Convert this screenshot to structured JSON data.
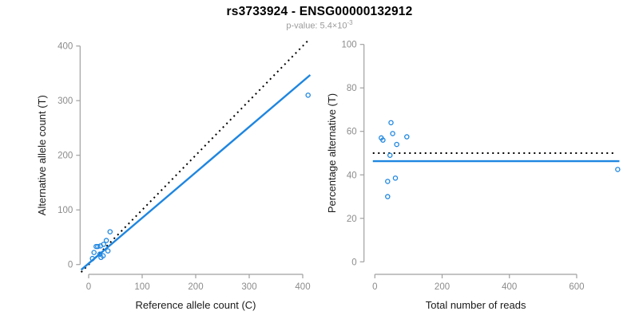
{
  "header": {
    "title": "rs3733924 - ENSG00000132912",
    "subtitle_base": "p-value: 5.4×10",
    "subtitle_exponent": "-3"
  },
  "colors": {
    "accent_blue": "#1E86E0",
    "dotted_black": "#000000",
    "axis_gray": "#a0a0a0",
    "tick_label_gray": "#8c8c8c",
    "label_black": "#1a1a1a",
    "subtitle_gray": "#9b9b9b"
  },
  "chart_data": [
    {
      "type": "scatter",
      "name": "allele-counts-scatter",
      "xlabel": "Reference allele count (C)",
      "ylabel": "Alternative allele count (T)",
      "xticks": [
        0,
        100,
        200,
        300,
        400
      ],
      "yticks": [
        0,
        100,
        200,
        300,
        400
      ],
      "xlim": [
        -16,
        458
      ],
      "ylim": [
        -16,
        412
      ],
      "grid": false,
      "points": [
        [
          40,
          60
        ],
        [
          33,
          44
        ],
        [
          28,
          37
        ],
        [
          22,
          34
        ],
        [
          17,
          33
        ],
        [
          14,
          33
        ],
        [
          36,
          25
        ],
        [
          10,
          22
        ],
        [
          21,
          19
        ],
        [
          27,
          16
        ],
        [
          23,
          13
        ],
        [
          7,
          11
        ],
        [
          410,
          310
        ]
      ],
      "lines": [
        {
          "name": "expected-50pct-line",
          "style": "dotted",
          "color_key": "dotted_black",
          "x1": -14,
          "y1": -14,
          "x2": 412,
          "y2": 412
        },
        {
          "name": "fitted-line",
          "style": "solid",
          "color_key": "accent_blue",
          "x1": -14,
          "y1": -9.7,
          "x2": 414,
          "y2": 347
        }
      ]
    },
    {
      "type": "scatter",
      "name": "percentage-vs-reads-scatter",
      "xlabel": "Total number of reads",
      "ylabel": "Percentage alternative (T)",
      "xticks": [
        0,
        200,
        400,
        600
      ],
      "yticks": [
        0,
        20,
        40,
        60,
        80,
        100
      ],
      "xlim": [
        -30,
        755
      ],
      "ylim": [
        0,
        100
      ],
      "grid": false,
      "points": [
        [
          48,
          64
        ],
        [
          53,
          59
        ],
        [
          95,
          57.5
        ],
        [
          19,
          57
        ],
        [
          24,
          56
        ],
        [
          65,
          54
        ],
        [
          45,
          49
        ],
        [
          61,
          38.5
        ],
        [
          38,
          37
        ],
        [
          38,
          30
        ],
        [
          722,
          42.5
        ]
      ],
      "lines": [
        {
          "name": "expected-50pct-line",
          "style": "dotted",
          "color_key": "dotted_black",
          "x1": -6,
          "y1": 50,
          "x2": 714,
          "y2": 50
        },
        {
          "name": "observed-pct-line",
          "style": "solid",
          "color_key": "accent_blue",
          "x1": -6,
          "y1": 46.3,
          "x2": 727,
          "y2": 46.3
        }
      ]
    }
  ]
}
